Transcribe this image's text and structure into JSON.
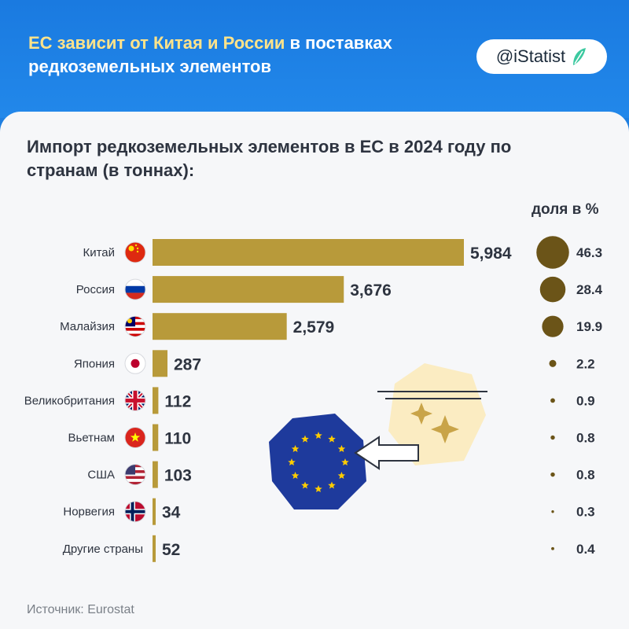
{
  "header": {
    "title_highlight": "ЕС зависит от Китая и России",
    "title_rest": " в поставках редкоземельных элементов",
    "brand": "@iStatist"
  },
  "chart_data": {
    "type": "bar",
    "orientation": "horizontal",
    "title": "Импорт редкоземельных элементов в ЕС в 2024 году по странам (в тоннах):",
    "categories": [
      "Китай",
      "Россия",
      "Малайзия",
      "Япония",
      "Великобритания",
      "Вьетнам",
      "США",
      "Норвегия",
      "Другие страны"
    ],
    "values": [
      5984,
      3676,
      2579,
      287,
      112,
      110,
      103,
      34,
      52
    ],
    "value_labels": [
      "5,984",
      "3,676",
      "2,579",
      "287",
      "112",
      "110",
      "103",
      "34",
      "52"
    ],
    "share_header": "доля в %",
    "shares": [
      46.3,
      28.4,
      19.9,
      2.2,
      0.9,
      0.8,
      0.8,
      0.3,
      0.4
    ],
    "share_labels": [
      "46.3",
      "28.4",
      "19.9",
      "2.2",
      "0.9",
      "0.8",
      "0.8",
      "0.3",
      "0.4"
    ],
    "flags": [
      "china",
      "russia",
      "malaysia",
      "japan",
      "uk",
      "vietnam",
      "usa",
      "norway",
      "none"
    ],
    "colors": {
      "bar": "#b89a3a",
      "bubble": "#6b5418"
    }
  },
  "source": "Источник: Eurostat"
}
